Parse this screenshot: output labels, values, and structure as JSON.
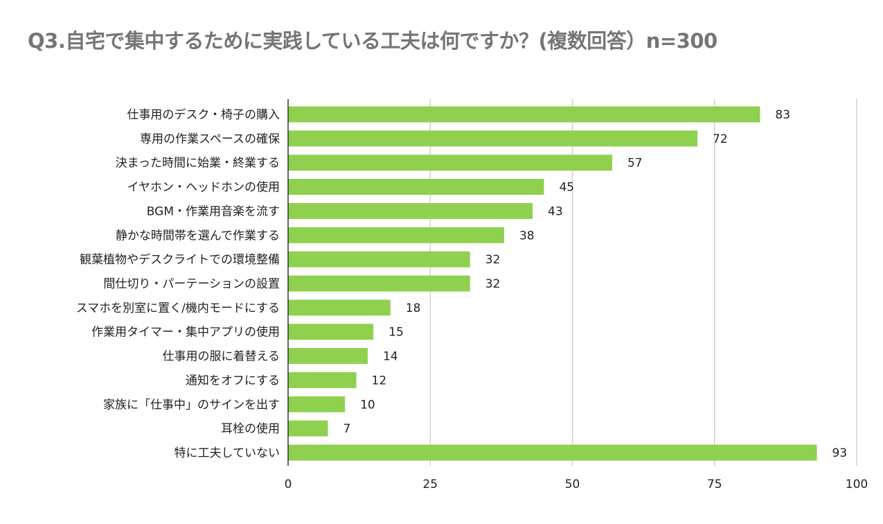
{
  "chart_data": {
    "type": "bar",
    "orientation": "horizontal",
    "title": "Q3.自宅で集中するために実践している工夫は何ですか？(複数回答）n=300",
    "categories": [
      "仕事用のデスク・椅子の購入",
      "専用の作業スペースの確保",
      "決まった時間に始業・終業する",
      "イヤホン・ヘッドホンの使用",
      "BGM・作業用音楽を流す",
      "静かな時間帯を選んで作業する",
      "観葉植物やデスクライトでの環境整備",
      "間仕切り・パーテーションの設置",
      "スマホを別室に置く/機内モードにする",
      "作業用タイマー・集中アプリの使用",
      "仕事用の服に着替える",
      "通知をオフにする",
      "家族に「仕事中」のサインを出す",
      "耳栓の使用",
      "特に工夫していない"
    ],
    "values": [
      83,
      72,
      57,
      45,
      43,
      38,
      32,
      32,
      18,
      15,
      14,
      12,
      10,
      7,
      93
    ],
    "xlim": [
      0,
      100
    ],
    "xticks": [
      "0",
      "25",
      "50",
      "75",
      "100"
    ],
    "xlabel": "",
    "ylabel": "",
    "grid": "vertical",
    "data_labels": true,
    "bar_color": "#8fd14f",
    "grid_color": "#d0d0d0"
  }
}
